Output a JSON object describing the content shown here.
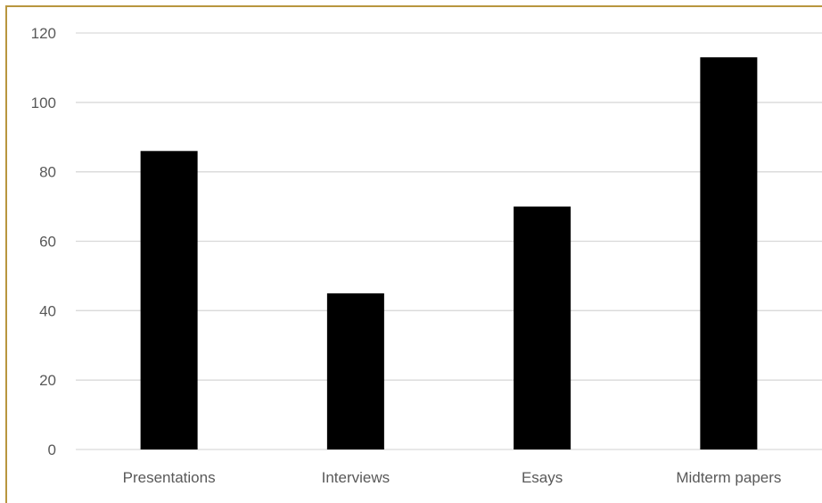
{
  "chart_data": {
    "type": "bar",
    "title": "",
    "xlabel": "",
    "ylabel": "",
    "categories": [
      "Presentations",
      "Interviews",
      "Esays",
      "Midterm papers"
    ],
    "values": [
      86,
      45,
      70,
      113
    ],
    "ylim": [
      0,
      120
    ],
    "yticks": [
      "0",
      "20",
      "40",
      "60",
      "80",
      "100",
      "120"
    ],
    "grid": true,
    "legend": "none",
    "colors": {
      "bar": "#000000",
      "grid": "#d9d9d9",
      "tick_text": "#595959",
      "frame": "#b8963e"
    }
  }
}
